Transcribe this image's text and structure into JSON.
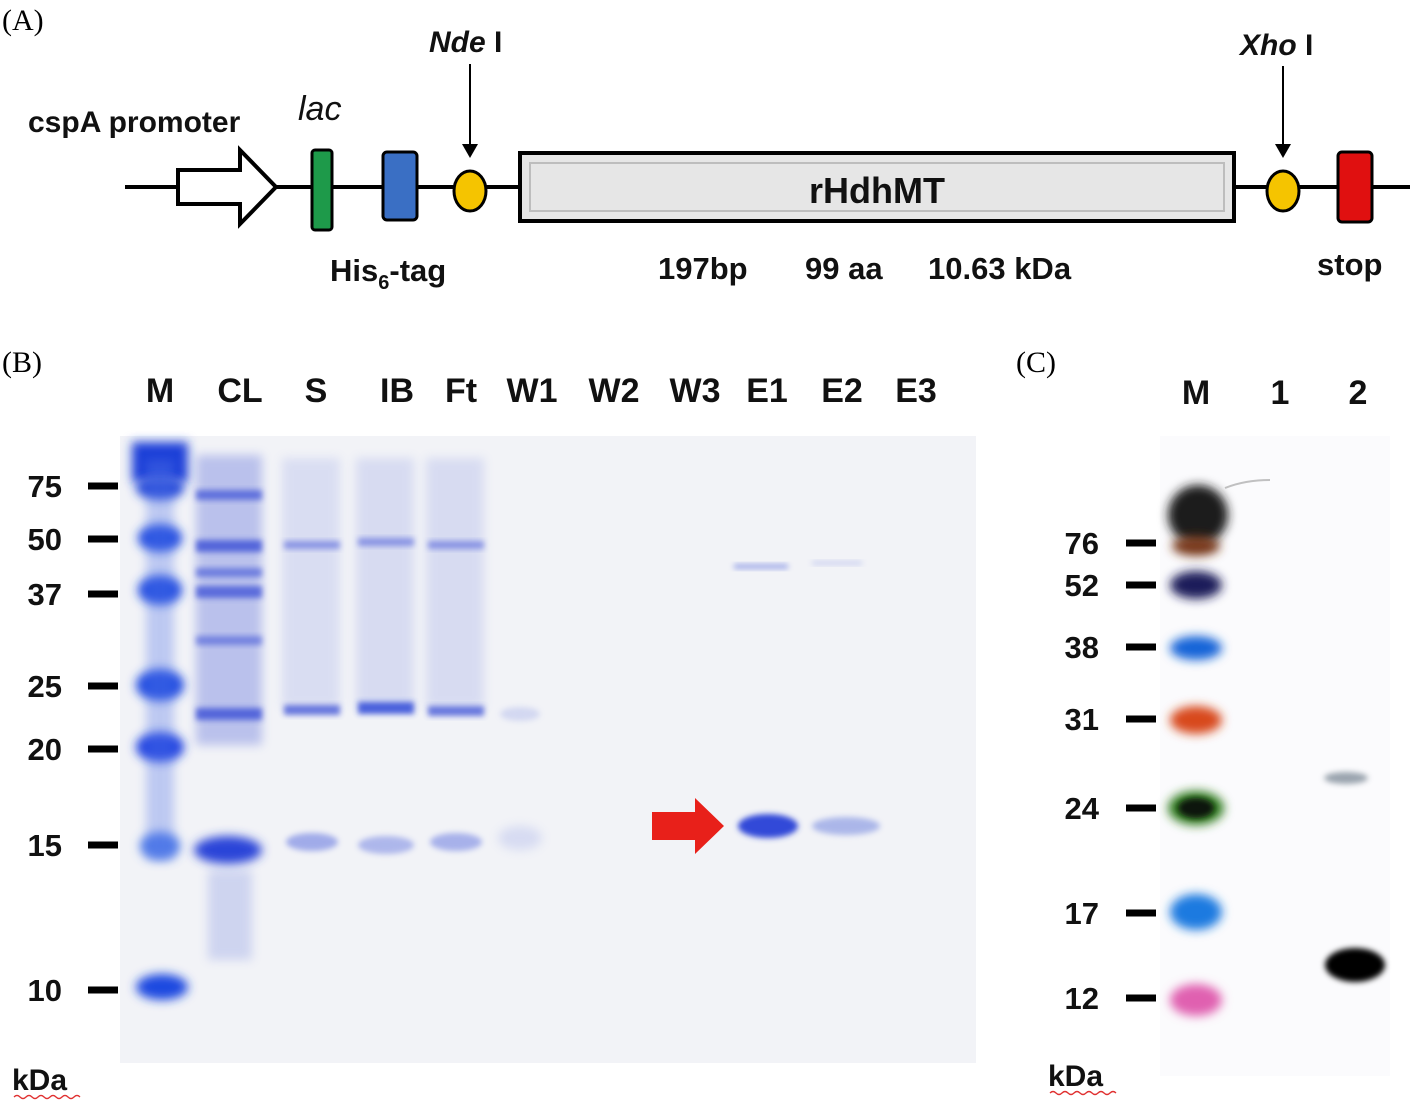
{
  "panel_a": {
    "label": "(A)",
    "promoter_label": "cspA promoter",
    "lac_label": "lac",
    "nde_label_italic": "Nde",
    "nde_label_roman": " I",
    "xho_label_italic": "Xho",
    "xho_label_roman": " I",
    "gene_label": "rHdhMT",
    "his_label_main": "His",
    "his_label_sub": "6",
    "his_label_suffix": "-tag",
    "stop_label": "stop",
    "size_bp": "197bp",
    "size_aa": "99 aa",
    "size_kda": "10.63 kDa",
    "colors": {
      "lac": "#1e9a4a",
      "his_tag": "#3a6fc4",
      "site": "#f5c400",
      "stop": "#e01010",
      "gene_box": "#e6e6e6"
    }
  },
  "panel_b": {
    "label": "(B)",
    "lanes": [
      "M",
      "CL",
      "S",
      "IB",
      "Ft",
      "W1",
      "W2",
      "W3",
      "E1",
      "E2",
      "E3"
    ],
    "markers": [
      "75",
      "50",
      "37",
      "25",
      "20",
      "15",
      "10"
    ],
    "unit": "kDa",
    "arrow_color": "#e8201a",
    "gel_color": "#f2f3f7",
    "band_color": "#3f55d6"
  },
  "panel_c": {
    "label": "(C)",
    "lanes": [
      "M",
      "1",
      "2"
    ],
    "markers": [
      "76",
      "52",
      "38",
      "31",
      "24",
      "17",
      "12"
    ],
    "unit": "kDa",
    "ladder_colors": [
      "#1a1a1a",
      "#1a1f5a",
      "#1565d8",
      "#d84a1a",
      "#2e7a1a",
      "#1c7ae0",
      "#e060b0"
    ]
  }
}
